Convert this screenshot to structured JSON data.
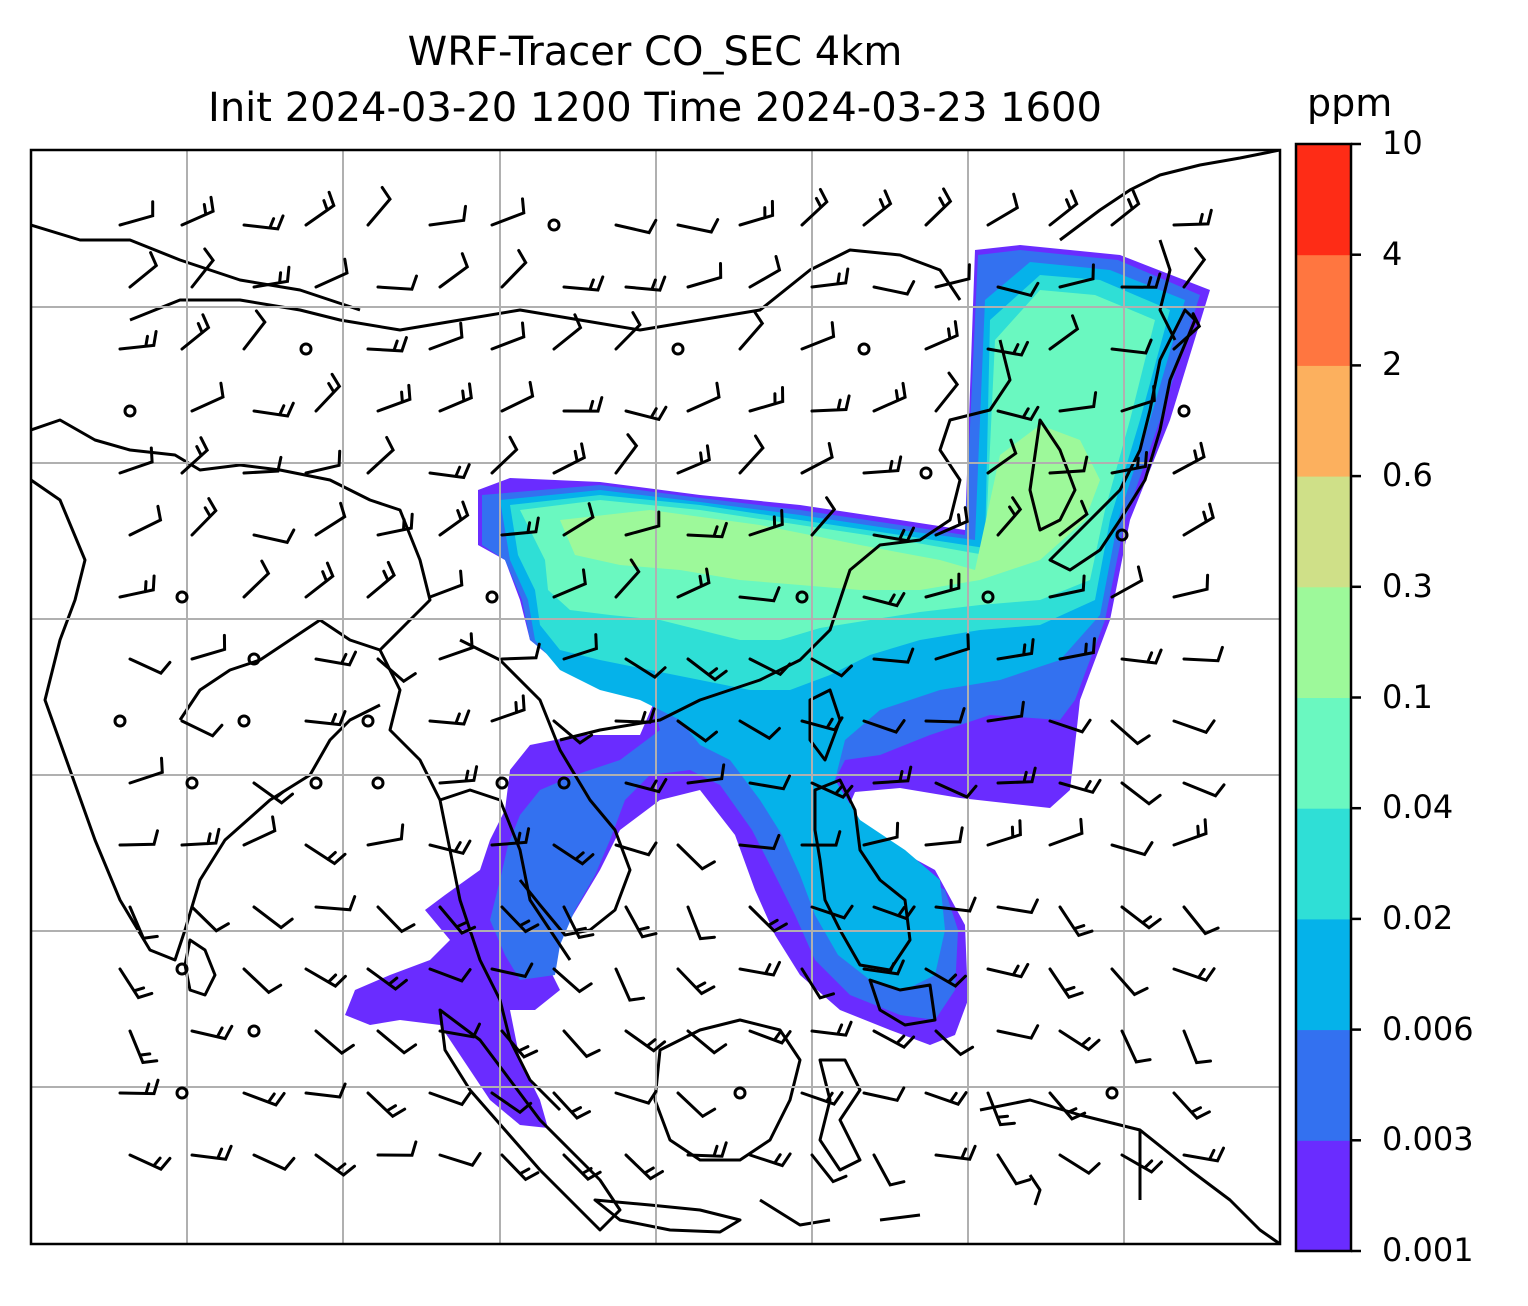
{
  "title_line1": "WRF-Tracer CO_SEC 4km",
  "title_line2": "Init 2024-03-20 1200 Time 2024-03-23 1600",
  "colorbar": {
    "unit": "ppm",
    "ticks": [
      "0.001",
      "0.003",
      "0.006",
      "0.02",
      "0.04",
      "0.1",
      "0.3",
      "0.6",
      "2",
      "4",
      "10"
    ],
    "colors": [
      "#6a2cff",
      "#3371f0",
      "#05b2ea",
      "#2fdfd6",
      "#6af8c0",
      "#9df99a",
      "#cfe088",
      "#fcb05e",
      "#ff7640",
      "#fe2c16"
    ]
  },
  "map": {
    "field": "CO_SEC tracer concentration",
    "overlay": "wind barbs",
    "gridlines": true
  }
}
